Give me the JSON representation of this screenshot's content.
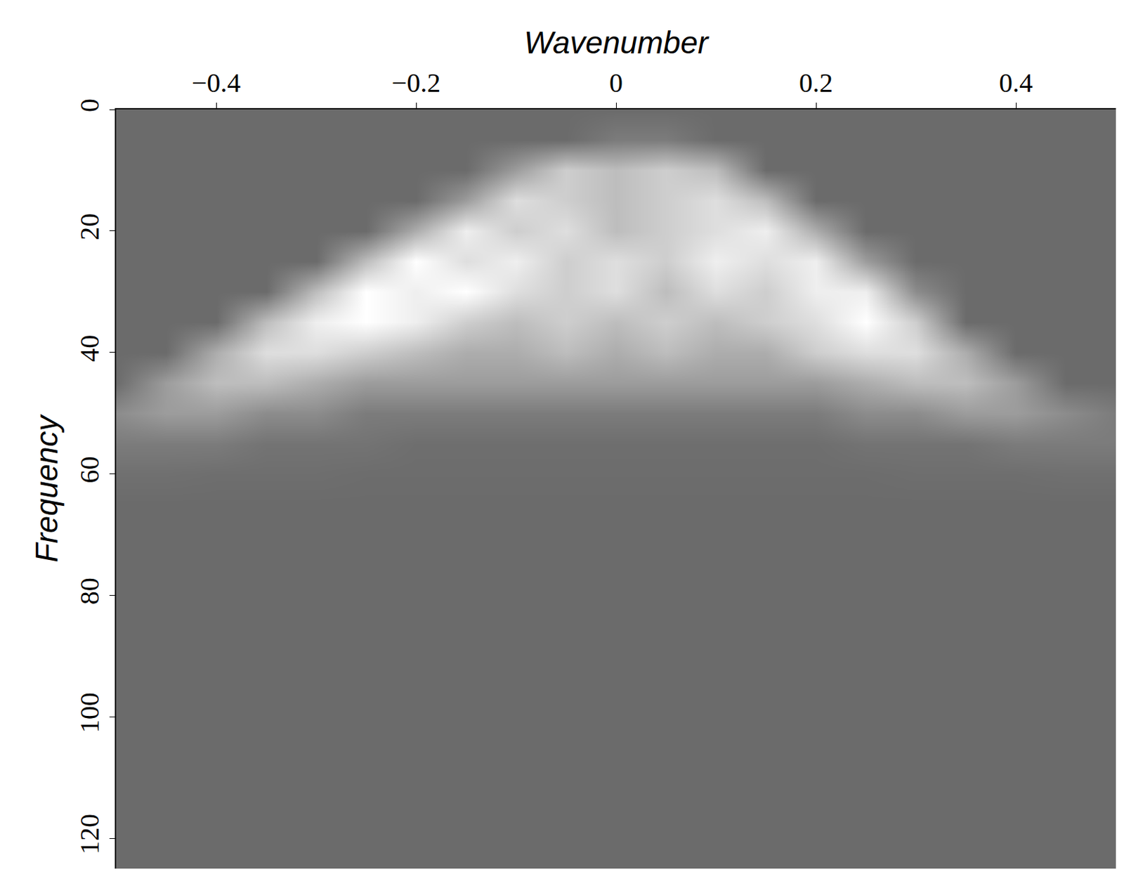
{
  "chart_data": {
    "type": "heatmap",
    "x_label": "Wavenumber",
    "y_label": "Frequency",
    "xlim": [
      -0.5,
      0.5
    ],
    "ylim": [
      125,
      0
    ],
    "xticks": [
      {
        "value": -0.4,
        "label": "−0.4"
      },
      {
        "value": -0.2,
        "label": "−0.2"
      },
      0,
      0.2,
      0.4
    ],
    "yticks": [
      0,
      20,
      40,
      60,
      80,
      100,
      120
    ],
    "x": [
      -0.5,
      -0.45,
      -0.4,
      -0.35,
      -0.3,
      -0.25,
      -0.2,
      -0.15,
      -0.1,
      -0.05,
      0,
      0.05,
      0.1,
      0.15,
      0.2,
      0.25,
      0.3,
      0.35,
      0.4,
      0.45,
      0.5
    ],
    "y": [
      0,
      5,
      10,
      15,
      20,
      25,
      30,
      35,
      40,
      45,
      50,
      55,
      60,
      65,
      70,
      75,
      80,
      85,
      90,
      95,
      100,
      105,
      110,
      115,
      120,
      125
    ],
    "cells": [
      [
        0,
        0,
        0,
        0,
        0,
        0,
        0,
        0,
        0,
        0,
        0,
        0,
        0,
        0,
        0,
        0,
        0,
        0,
        0,
        0,
        0
      ],
      [
        0,
        0,
        0,
        0,
        0,
        0,
        0,
        0,
        0,
        0,
        0.1,
        0.1,
        0,
        0,
        0,
        0,
        0,
        0,
        0,
        0,
        0
      ],
      [
        0,
        0,
        0,
        0,
        0,
        0,
        0,
        0,
        0.3,
        0.6,
        0.5,
        0.6,
        0.5,
        0,
        0,
        0,
        0,
        0,
        0,
        0,
        0
      ],
      [
        0,
        0,
        0,
        0,
        0,
        0,
        0,
        0.3,
        0.7,
        0.6,
        0.5,
        0.6,
        0.7,
        0.5,
        0,
        0,
        0,
        0,
        0,
        0,
        0
      ],
      [
        0,
        0,
        0,
        0,
        0,
        0,
        0.4,
        0.8,
        0.6,
        0.7,
        0.5,
        0.6,
        0.7,
        0.8,
        0.4,
        0,
        0,
        0,
        0,
        0,
        0
      ],
      [
        0,
        0,
        0,
        0,
        0,
        0.5,
        0.9,
        0.7,
        0.8,
        0.6,
        0.7,
        0.6,
        0.8,
        0.7,
        0.8,
        0.3,
        0,
        0,
        0,
        0,
        0
      ],
      [
        0,
        0,
        0,
        0,
        0.5,
        0.9,
        0.8,
        0.9,
        0.7,
        0.6,
        0.7,
        0.5,
        0.7,
        0.6,
        0.8,
        0.8,
        0.2,
        0,
        0,
        0,
        0
      ],
      [
        0,
        0,
        0,
        0.5,
        0.8,
        0.9,
        0.8,
        0.6,
        0.5,
        0.6,
        0.5,
        0.6,
        0.5,
        0.6,
        0.7,
        0.9,
        0.6,
        0,
        0,
        0,
        0
      ],
      [
        0,
        0,
        0.4,
        0.7,
        0.7,
        0.6,
        0.5,
        0.4,
        0.4,
        0.5,
        0.4,
        0.5,
        0.4,
        0.4,
        0.6,
        0.7,
        0.7,
        0.4,
        0,
        0,
        0
      ],
      [
        0,
        0.3,
        0.5,
        0.5,
        0.4,
        0.3,
        0.3,
        0.3,
        0.3,
        0.3,
        0.3,
        0.3,
        0.3,
        0.3,
        0.3,
        0.4,
        0.5,
        0.5,
        0.3,
        0,
        0
      ],
      [
        0.2,
        0.3,
        0.3,
        0.2,
        0.2,
        0.1,
        0.1,
        0.1,
        0.1,
        0.1,
        0.1,
        0.1,
        0.1,
        0.1,
        0.1,
        0.2,
        0.2,
        0.3,
        0.3,
        0.2,
        0.1
      ],
      [
        0.1,
        0.1,
        0.1,
        0.05,
        0.05,
        0.05,
        0.02,
        0.02,
        0.02,
        0.02,
        0.02,
        0.02,
        0.02,
        0.02,
        0.02,
        0.05,
        0.05,
        0.05,
        0.1,
        0.1,
        0.1
      ],
      [
        0.03,
        0.03,
        0.02,
        0.02,
        0.02,
        0.01,
        0.01,
        0.01,
        0.01,
        0.01,
        0.01,
        0.01,
        0.01,
        0.01,
        0.01,
        0.01,
        0.02,
        0.02,
        0.02,
        0.03,
        0.03
      ],
      [
        0,
        0,
        0,
        0,
        0,
        0,
        0,
        0,
        0,
        0,
        0,
        0,
        0,
        0,
        0,
        0,
        0,
        0,
        0,
        0,
        0
      ],
      [
        0,
        0,
        0,
        0,
        0,
        0,
        0,
        0,
        0,
        0,
        0,
        0,
        0,
        0,
        0,
        0,
        0,
        0,
        0,
        0,
        0
      ],
      [
        0,
        0,
        0,
        0,
        0,
        0,
        0,
        0,
        0,
        0,
        0,
        0,
        0,
        0,
        0,
        0,
        0,
        0,
        0,
        0,
        0
      ],
      [
        0,
        0,
        0,
        0,
        0,
        0,
        0,
        0,
        0,
        0,
        0,
        0,
        0,
        0,
        0,
        0,
        0,
        0,
        0,
        0,
        0
      ],
      [
        0,
        0,
        0,
        0,
        0,
        0,
        0,
        0,
        0,
        0,
        0,
        0,
        0,
        0,
        0,
        0,
        0,
        0,
        0,
        0,
        0
      ],
      [
        0,
        0,
        0,
        0,
        0,
        0,
        0,
        0,
        0,
        0,
        0,
        0,
        0,
        0,
        0,
        0,
        0,
        0,
        0,
        0,
        0
      ],
      [
        0,
        0,
        0,
        0,
        0,
        0,
        0,
        0,
        0,
        0,
        0,
        0,
        0,
        0,
        0,
        0,
        0,
        0,
        0,
        0,
        0
      ],
      [
        0,
        0,
        0,
        0,
        0,
        0,
        0,
        0,
        0,
        0,
        0,
        0,
        0,
        0,
        0,
        0,
        0,
        0,
        0,
        0,
        0
      ],
      [
        0,
        0,
        0,
        0,
        0,
        0,
        0,
        0,
        0,
        0,
        0,
        0,
        0,
        0,
        0,
        0,
        0,
        0,
        0,
        0,
        0
      ],
      [
        0,
        0,
        0,
        0,
        0,
        0,
        0,
        0,
        0,
        0,
        0,
        0,
        0,
        0,
        0,
        0,
        0,
        0,
        0,
        0,
        0
      ],
      [
        0,
        0,
        0,
        0,
        0,
        0,
        0,
        0,
        0,
        0,
        0,
        0,
        0,
        0,
        0,
        0,
        0,
        0,
        0,
        0,
        0
      ],
      [
        0,
        0,
        0,
        0,
        0,
        0,
        0,
        0,
        0,
        0,
        0,
        0,
        0,
        0,
        0,
        0,
        0,
        0,
        0,
        0,
        0
      ],
      [
        0,
        0,
        0,
        0,
        0,
        0,
        0,
        0,
        0,
        0,
        0,
        0,
        0,
        0,
        0,
        0,
        0,
        0,
        0,
        0,
        0
      ]
    ]
  }
}
